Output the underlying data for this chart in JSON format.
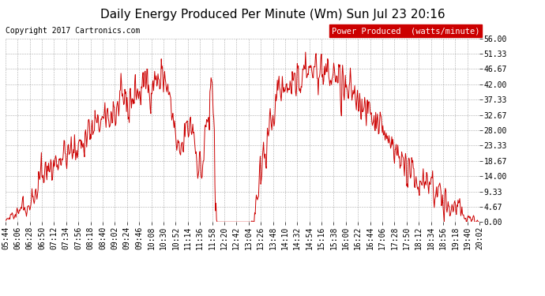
{
  "title": "Daily Energy Produced Per Minute (Wm) Sun Jul 23 20:16",
  "copyright": "Copyright 2017 Cartronics.com",
  "legend_label": "Power Produced  (watts/minute)",
  "legend_bg": "#cc0000",
  "legend_text_color": "#ffffff",
  "line_color": "#cc0000",
  "background_color": "#ffffff",
  "grid_color": "#888888",
  "ylim": [
    0,
    56.0
  ],
  "yticks": [
    0.0,
    4.67,
    9.33,
    14.0,
    18.67,
    23.33,
    28.0,
    32.67,
    37.33,
    42.0,
    46.67,
    51.33,
    56.0
  ],
  "ytick_labels": [
    "0.00",
    "4.67",
    "9.33",
    "14.00",
    "18.67",
    "23.33",
    "28.00",
    "32.67",
    "37.33",
    "42.00",
    "46.67",
    "51.33",
    "56.00"
  ],
  "xtick_labels": [
    "05:44",
    "06:06",
    "06:28",
    "06:50",
    "07:12",
    "07:34",
    "07:56",
    "08:18",
    "08:40",
    "09:02",
    "09:24",
    "09:46",
    "10:08",
    "10:30",
    "10:52",
    "11:14",
    "11:36",
    "11:58",
    "12:20",
    "12:42",
    "13:04",
    "13:26",
    "13:48",
    "14:10",
    "14:32",
    "14:54",
    "15:16",
    "15:38",
    "16:00",
    "16:22",
    "16:44",
    "17:06",
    "17:28",
    "17:50",
    "18:12",
    "18:34",
    "18:56",
    "19:18",
    "19:40",
    "20:02"
  ],
  "title_fontsize": 11,
  "copyright_fontsize": 7,
  "tick_fontsize": 7,
  "legend_fontsize": 7.5
}
